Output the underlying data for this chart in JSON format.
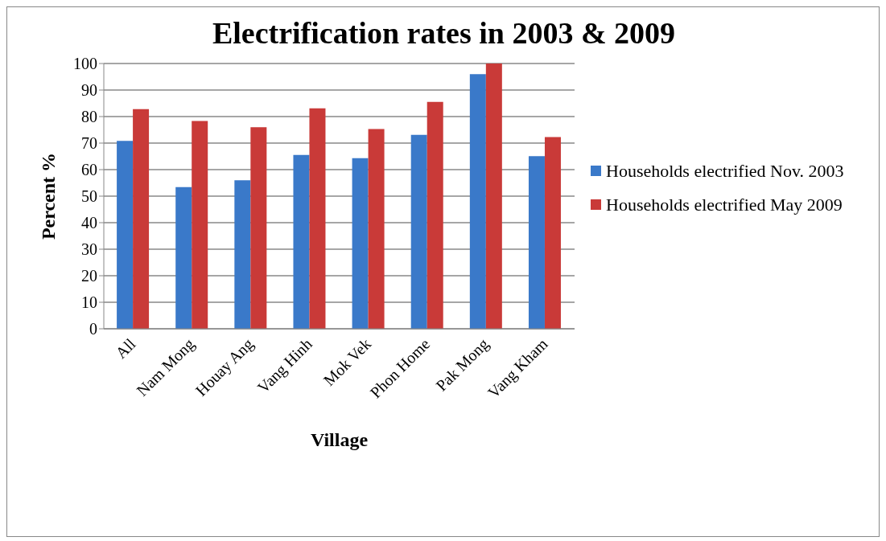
{
  "chart_data": {
    "type": "bar",
    "title": "Electrification rates in 2003 & 2009",
    "xlabel": "Village",
    "ylabel": "Percent %",
    "categories": [
      "All",
      "Nam Mong",
      "Houay Ang",
      "Vang Hinh",
      "Mok Vek",
      "Phon Home",
      "Pak Mong",
      "Vang Kham"
    ],
    "series": [
      {
        "name": "Households electrified Nov. 2003",
        "color": "#3a79c9",
        "values": [
          70.8,
          53.4,
          56,
          65.5,
          64.3,
          73.1,
          96,
          65.1
        ]
      },
      {
        "name": "Households electrified May 2009",
        "color": "#c93a38",
        "values": [
          82.8,
          78.3,
          76,
          83.1,
          75.3,
          85.5,
          100,
          72.3
        ]
      }
    ],
    "ylim": [
      0,
      100
    ],
    "yticks": [
      0,
      10,
      20,
      30,
      40,
      50,
      60,
      70,
      80,
      90,
      100
    ],
    "grid": "y",
    "legend": "right"
  }
}
